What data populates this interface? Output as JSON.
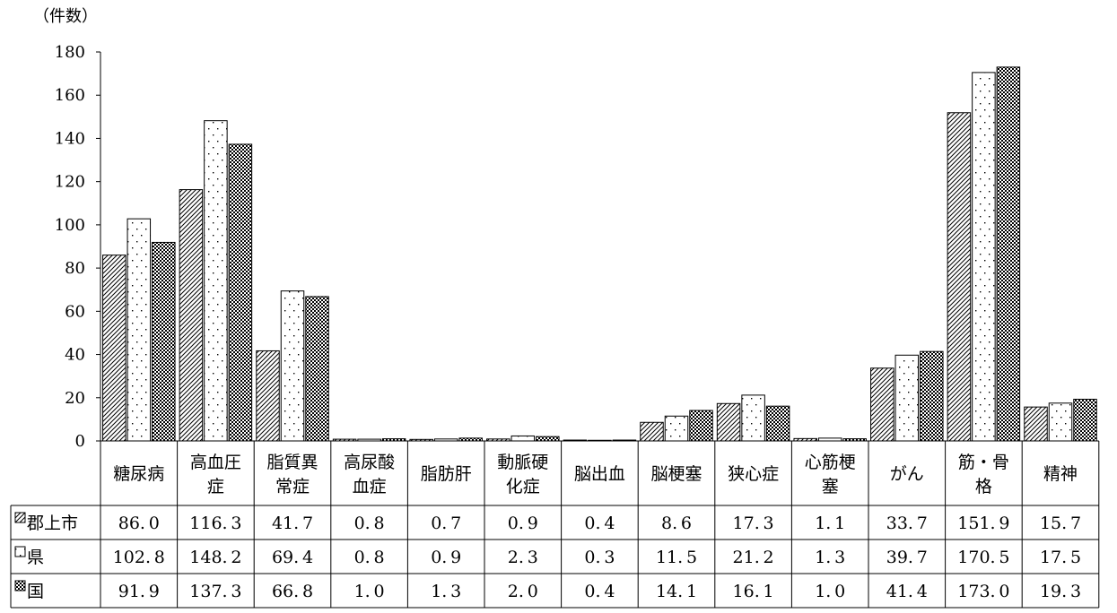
{
  "chart_data": {
    "type": "bar",
    "unit_label": "（件数）",
    "ylim": [
      0,
      180
    ],
    "yticks": [
      0,
      20,
      40,
      60,
      80,
      100,
      120,
      140,
      160,
      180
    ],
    "grid": false,
    "categories": [
      [
        "糖尿病"
      ],
      [
        "高血圧",
        "症"
      ],
      [
        "脂質異",
        "常症"
      ],
      [
        "高尿酸",
        "血症"
      ],
      [
        "脂肪肝"
      ],
      [
        "動脈硬",
        "化症"
      ],
      [
        "脳出血"
      ],
      [
        "脳梗塞"
      ],
      [
        "狭心症"
      ],
      [
        "心筋梗",
        "塞"
      ],
      [
        "がん"
      ],
      [
        "筋・骨",
        "格"
      ],
      [
        "精神"
      ]
    ],
    "series": [
      {
        "name": "郡上市",
        "pattern": "hatch",
        "values": [
          86.0,
          116.3,
          41.7,
          0.8,
          0.7,
          0.9,
          0.4,
          8.6,
          17.3,
          1.1,
          33.7,
          151.9,
          15.7
        ]
      },
      {
        "name": "県",
        "pattern": "dots",
        "values": [
          102.8,
          148.2,
          69.4,
          0.8,
          0.9,
          2.3,
          0.3,
          11.5,
          21.2,
          1.3,
          39.7,
          170.5,
          17.5
        ]
      },
      {
        "name": "国",
        "pattern": "checker",
        "values": [
          91.9,
          137.3,
          66.8,
          1.0,
          1.3,
          2.0,
          0.4,
          14.1,
          16.1,
          1.0,
          41.4,
          173.0,
          19.3
        ]
      }
    ]
  },
  "colors": {
    "line": "#000000",
    "bar_fill": "#ffffff"
  }
}
